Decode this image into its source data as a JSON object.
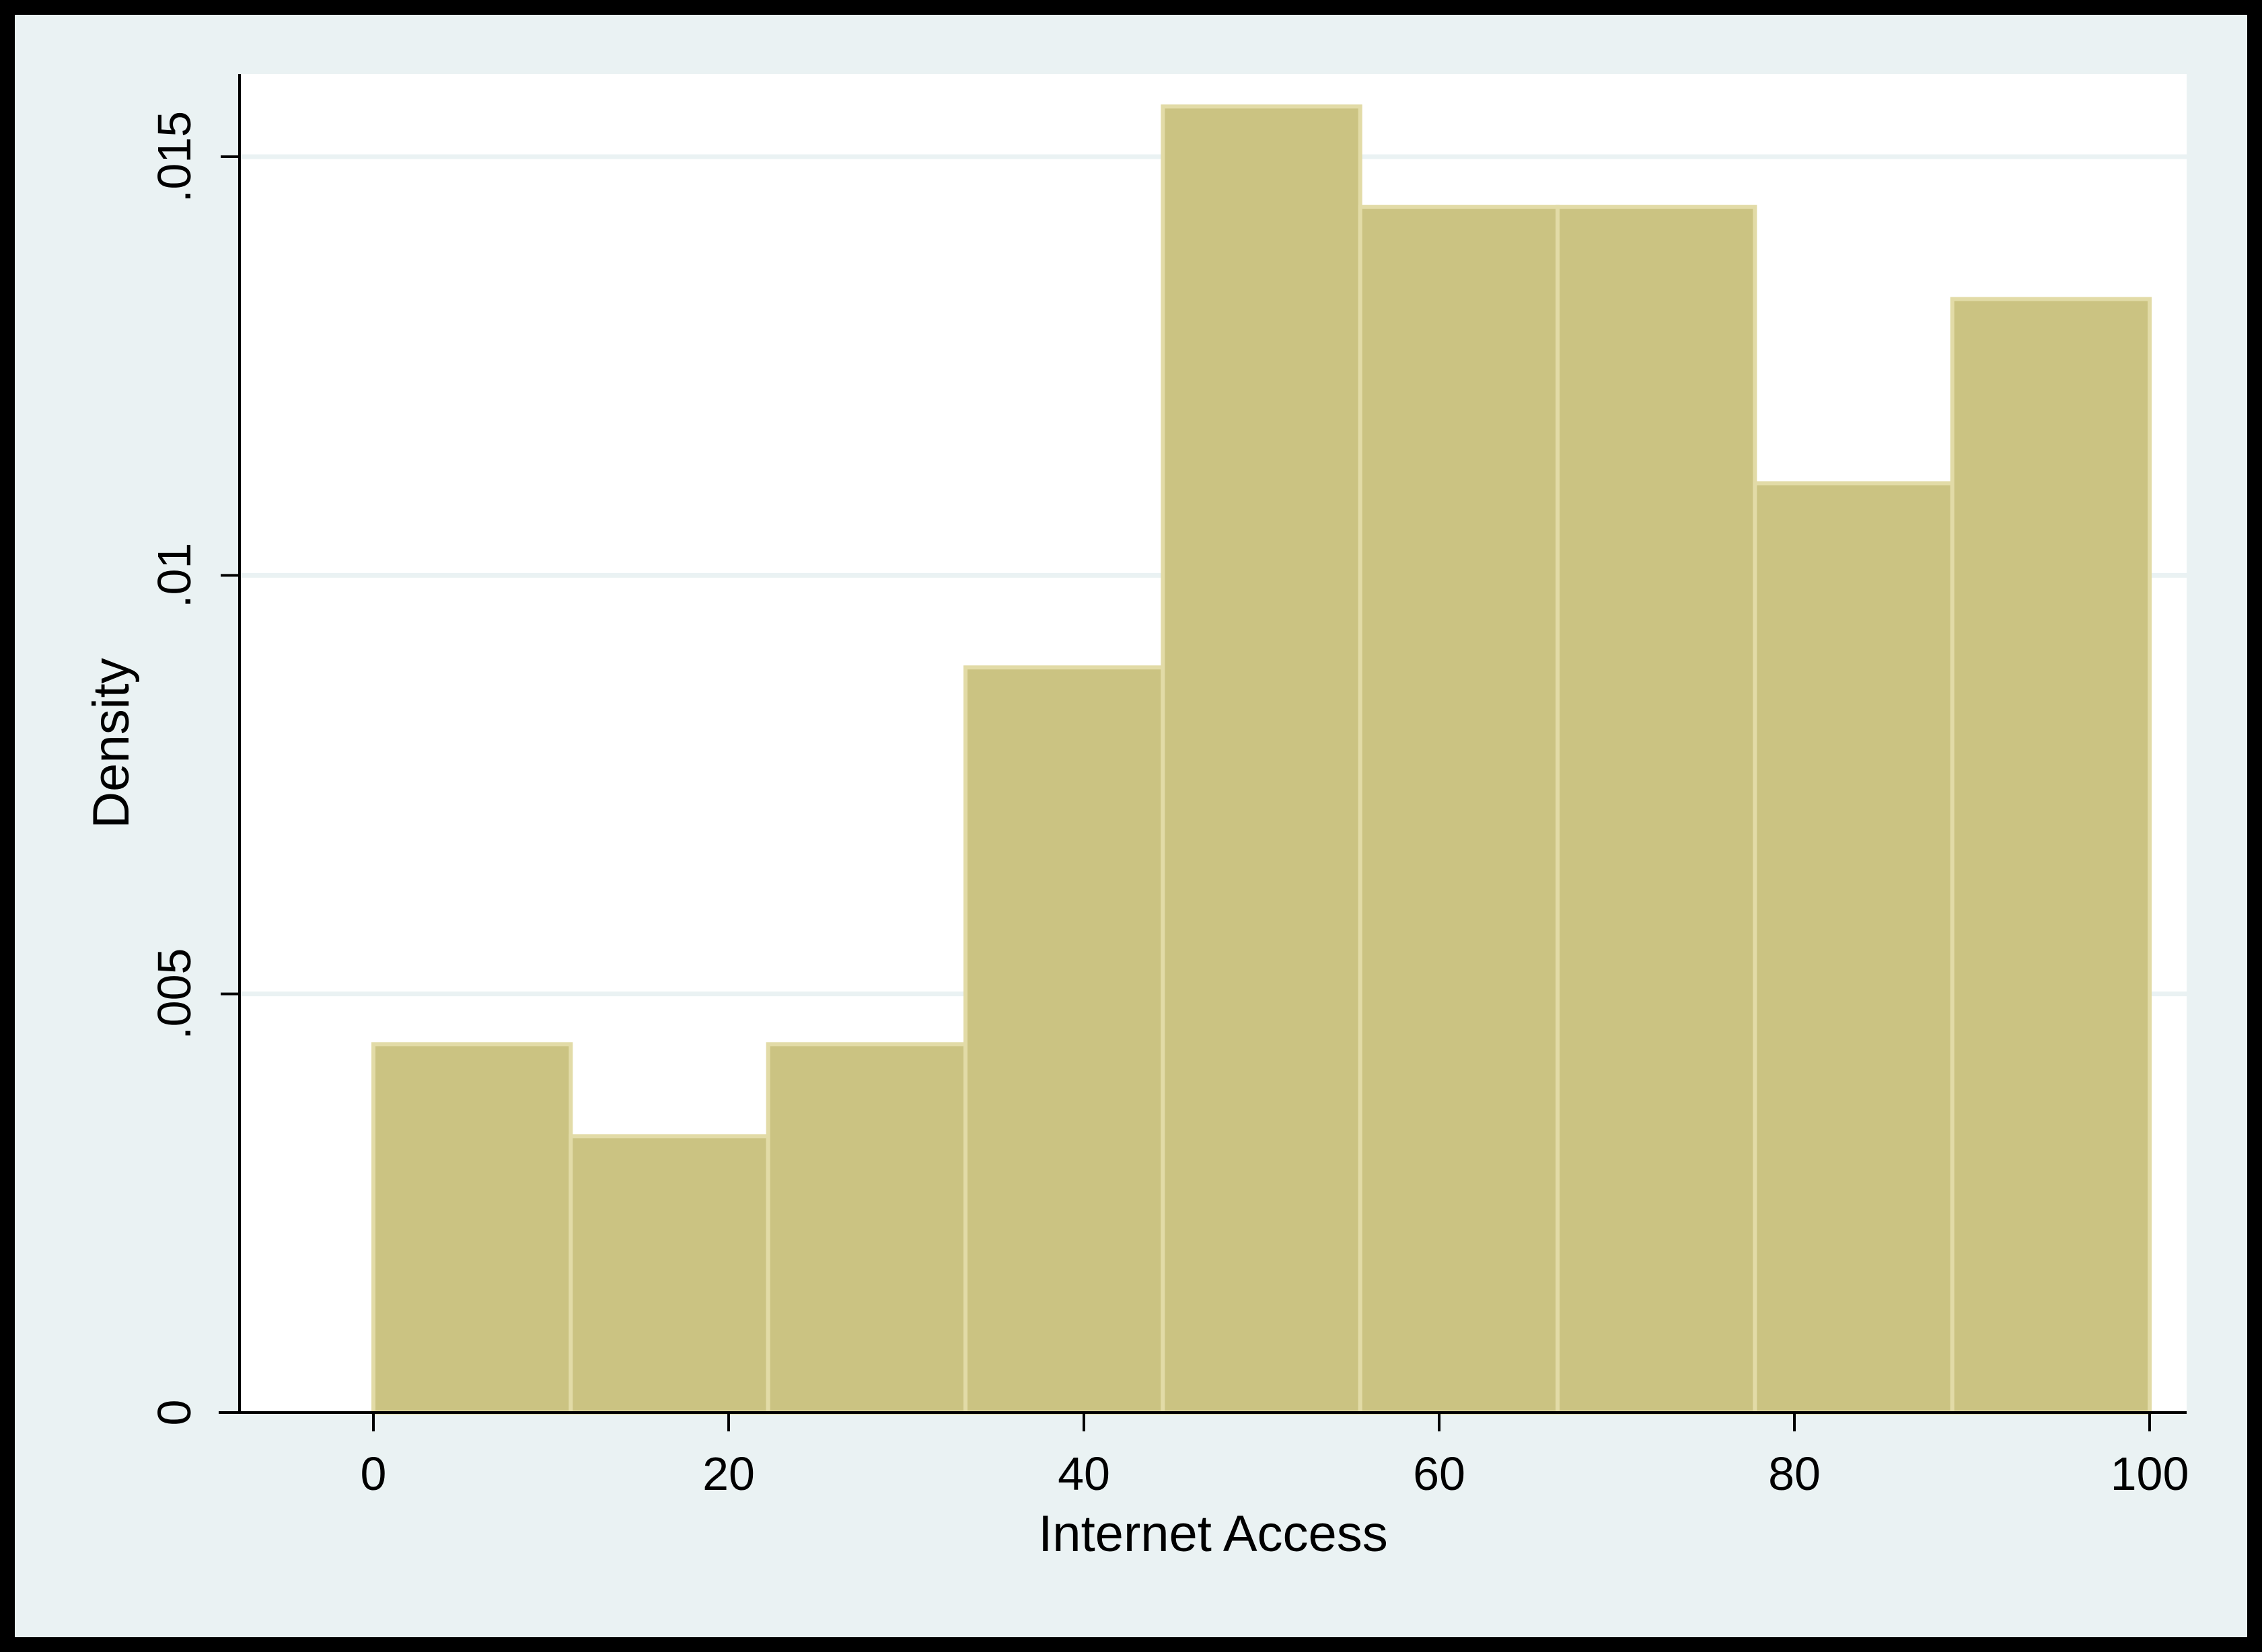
{
  "chart_data": {
    "type": "bar",
    "subtype": "histogram",
    "xlabel": "Internet Access",
    "ylabel": "Density",
    "xlim": [
      -7.5,
      102.5
    ],
    "ylim": [
      0,
      0.016
    ],
    "x_ticks": [
      {
        "value": 0,
        "label": "0"
      },
      {
        "value": 20,
        "label": "20"
      },
      {
        "value": 40,
        "label": "40"
      },
      {
        "value": 60,
        "label": "60"
      },
      {
        "value": 80,
        "label": "80"
      },
      {
        "value": 100,
        "label": "100"
      }
    ],
    "y_ticks": [
      {
        "value": 0,
        "label": "0"
      },
      {
        "value": 0.005,
        "label": ".005"
      },
      {
        "value": 0.01,
        "label": ".01"
      },
      {
        "value": 0.015,
        "label": ".015"
      }
    ],
    "bins": [
      {
        "x0": 0,
        "x1": 11.111,
        "density": 0.0044
      },
      {
        "x0": 11.111,
        "x1": 22.222,
        "density": 0.0033
      },
      {
        "x0": 22.222,
        "x1": 33.333,
        "density": 0.0044
      },
      {
        "x0": 33.333,
        "x1": 44.444,
        "density": 0.0089
      },
      {
        "x0": 44.444,
        "x1": 55.556,
        "density": 0.0156
      },
      {
        "x0": 55.556,
        "x1": 66.667,
        "density": 0.0144
      },
      {
        "x0": 66.667,
        "x1": 77.778,
        "density": 0.0144
      },
      {
        "x0": 77.778,
        "x1": 88.889,
        "density": 0.0111
      },
      {
        "x0": 88.889,
        "x1": 100,
        "density": 0.0133
      }
    ],
    "grid": true,
    "colors": {
      "outer_border": "#000000",
      "graph_region": "#eaf2f3",
      "plot_region": "#ffffff",
      "bar_fill": "#cbc382",
      "bar_outline": "#e2dba7",
      "gridline": "#eaf2f3",
      "axis": "#000000"
    }
  }
}
